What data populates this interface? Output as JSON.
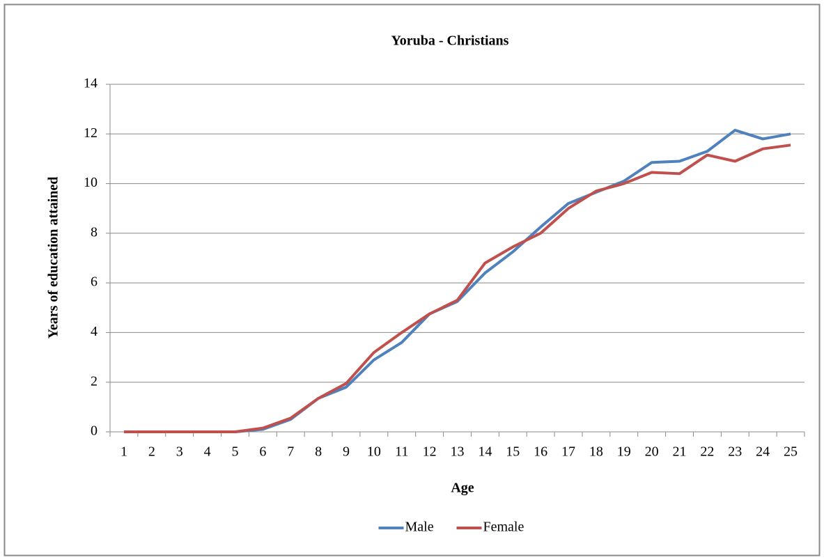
{
  "chart_data": {
    "type": "line",
    "title": "Yoruba - Christians",
    "x_label": "Age",
    "y_label": "Years of education attained",
    "categories": [
      "1",
      "2",
      "3",
      "4",
      "5",
      "6",
      "7",
      "8",
      "9",
      "10",
      "11",
      "12",
      "13",
      "14",
      "15",
      "16",
      "17",
      "18",
      "19",
      "20",
      "21",
      "22",
      "23",
      "24",
      "25"
    ],
    "series": [
      {
        "name": "Male",
        "color": "#4f81bd",
        "values": [
          0,
          0,
          0,
          0,
          0,
          0.1,
          0.5,
          1.35,
          1.8,
          2.9,
          3.6,
          4.75,
          5.25,
          6.4,
          7.25,
          8.25,
          9.2,
          9.65,
          10.1,
          10.85,
          10.9,
          11.3,
          12.15,
          11.8,
          12.0
        ]
      },
      {
        "name": "Female",
        "color": "#c0504d",
        "values": [
          0,
          0,
          0,
          0,
          0,
          0.15,
          0.55,
          1.35,
          1.95,
          3.2,
          4.0,
          4.75,
          5.3,
          6.8,
          7.45,
          8.0,
          9.0,
          9.7,
          10.0,
          10.45,
          10.4,
          11.15,
          10.9,
          11.4,
          11.55
        ]
      }
    ],
    "ylim": [
      0,
      14
    ],
    "yticks": [
      0,
      2,
      4,
      6,
      8,
      10,
      12,
      14
    ],
    "grid": true,
    "legend": "bottom"
  }
}
